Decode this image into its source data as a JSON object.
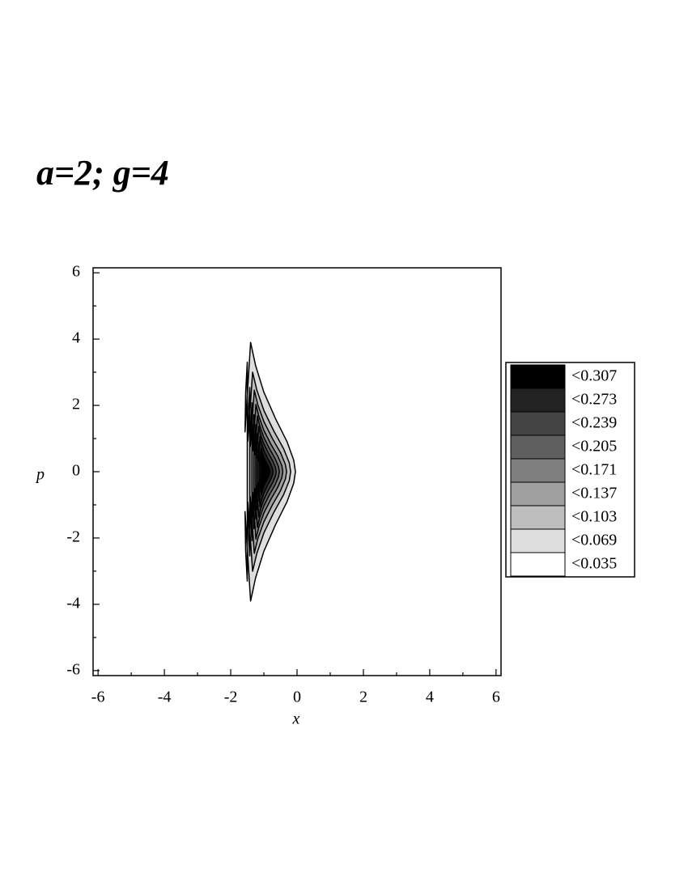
{
  "chart_data": {
    "type": "contour",
    "title": "a=2; g=4",
    "x_label": "x",
    "y_label": "p",
    "xlim": [
      -6.15,
      6.15
    ],
    "ylim": [
      -6.15,
      6.15
    ],
    "xticks": [
      -6,
      -4,
      -2,
      0,
      2,
      4,
      6
    ],
    "yticks": [
      -6,
      -4,
      -2,
      0,
      2,
      4,
      6
    ],
    "xminorticks": [
      -5,
      -3,
      -1,
      1,
      3,
      5
    ],
    "yminorticks": [
      -5,
      -3,
      -1,
      1,
      3,
      5
    ],
    "levels": [
      {
        "value": 0.307,
        "label": "<0.307",
        "color": "#000000"
      },
      {
        "value": 0.273,
        "label": "<0.273",
        "color": "#222222"
      },
      {
        "value": 0.239,
        "label": "<0.239",
        "color": "#444444"
      },
      {
        "value": 0.205,
        "label": "<0.205",
        "color": "#5f5f5f"
      },
      {
        "value": 0.171,
        "label": "<0.171",
        "color": "#7f7f7f"
      },
      {
        "value": 0.137,
        "label": "<0.137",
        "color": "#9f9f9f"
      },
      {
        "value": 0.103,
        "label": "<0.103",
        "color": "#bebebe"
      },
      {
        "value": 0.069,
        "label": "<0.069",
        "color": "#dedede"
      },
      {
        "value": 0.035,
        "label": "<0.035",
        "color": "#ffffff"
      }
    ]
  }
}
